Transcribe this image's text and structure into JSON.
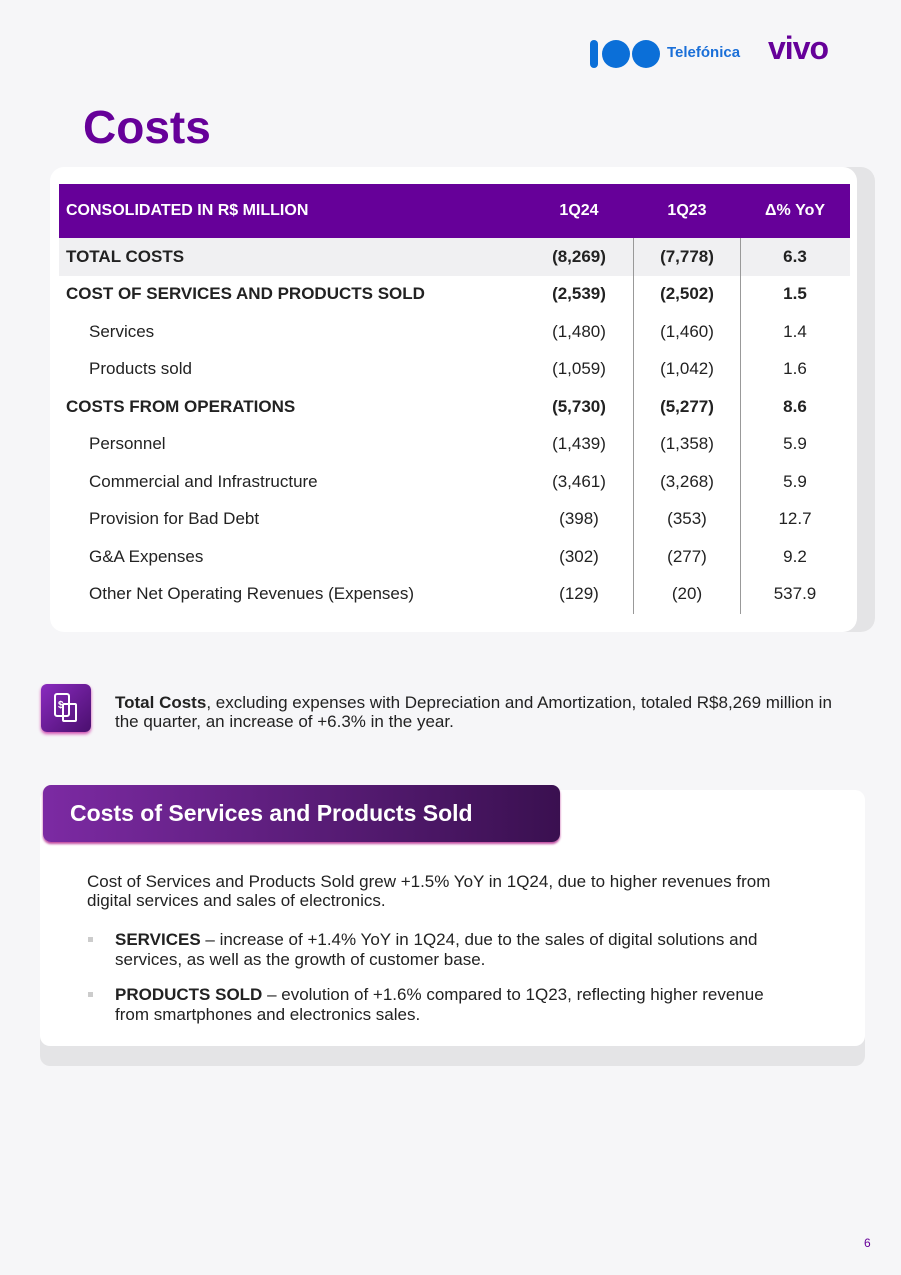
{
  "header": {
    "brand": "Telefónica",
    "brand2": "vivo"
  },
  "title": "Costs",
  "table": {
    "columns": [
      "CONSOLIDATED IN R$ MILLION",
      "1Q24",
      "1Q23",
      "Δ% YoY"
    ],
    "rows": [
      [
        "TOTAL COSTS",
        "(8,269)",
        "(7,778)",
        "6.3"
      ],
      [
        "COST OF SERVICES AND PRODUCTS SOLD",
        "(2,539)",
        "(2,502)",
        "1.5"
      ],
      [
        "Services",
        "(1,480)",
        "(1,460)",
        "1.4"
      ],
      [
        "Products sold",
        "(1,059)",
        "(1,042)",
        "1.6"
      ],
      [
        "COSTS FROM OPERATIONS",
        "(5,730)",
        "(5,277)",
        "8.6"
      ],
      [
        "Personnel",
        "(1,439)",
        "(1,358)",
        "5.9"
      ],
      [
        "Commercial and Infrastructure",
        "(3,461)",
        "(3,268)",
        "5.9"
      ],
      [
        "Provision for Bad Debt",
        "(398)",
        "(353)",
        "12.7"
      ],
      [
        "G&A Expenses",
        "(302)",
        "(277)",
        "9.2"
      ],
      [
        "Other Net Operating Revenues (Expenses)",
        "(129)",
        "(20)",
        "537.9"
      ]
    ]
  },
  "note": {
    "bold": "Total Costs",
    "text": ", excluding expenses with Depreciation and Amortization, totaled R$8,269 million in the quarter, an increase of +6.3% in the year."
  },
  "section": {
    "title": "Costs of Services and Products Sold",
    "paragraph": "Cost of Services and Products Sold grew +1.5% YoY in 1Q24, due to higher revenues from digital services and sales of electronics.",
    "bullets": [
      {
        "term": "SERVICES",
        "text": " – increase of +1.4% YoY in 1Q24, due to the sales of digital solutions and services, as well as the growth of customer base."
      },
      {
        "term": "PRODUCTS SOLD",
        "text": " – evolution of +1.6% compared to 1Q23, reflecting higher revenue from smartphones and electronics sales."
      }
    ]
  },
  "page_number": "6"
}
